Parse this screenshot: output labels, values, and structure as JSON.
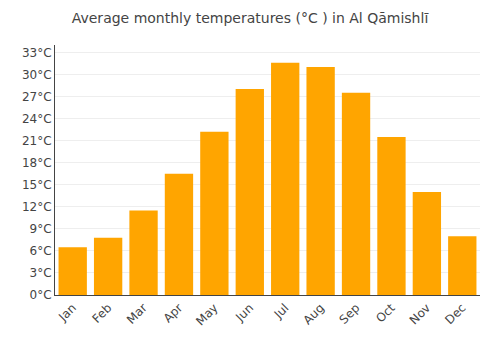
{
  "chart_data": {
    "type": "bar",
    "title": "Average monthly temperatures (°C ) in Al Qāmishlī",
    "categories": [
      "Jan",
      "Feb",
      "Mar",
      "Apr",
      "May",
      "Jun",
      "Jul",
      "Aug",
      "Sep",
      "Oct",
      "Nov",
      "Dec"
    ],
    "values": [
      6.5,
      7.8,
      11.5,
      16.5,
      22.2,
      28.0,
      31.6,
      31.0,
      27.5,
      21.5,
      14.0,
      8.0
    ],
    "color": "#FFA500",
    "ylim": [
      0,
      34
    ],
    "yticks": [
      {
        "value": 0,
        "label": "0°C"
      },
      {
        "value": 3,
        "label": "3°C"
      },
      {
        "value": 6,
        "label": "6°C"
      },
      {
        "value": 9,
        "label": "9°C"
      },
      {
        "value": 12,
        "label": "12°C"
      },
      {
        "value": 15,
        "label": "15°C"
      },
      {
        "value": 18,
        "label": "18°C"
      },
      {
        "value": 21,
        "label": "21°C"
      },
      {
        "value": 24,
        "label": "24°C"
      },
      {
        "value": 27,
        "label": "27°C"
      },
      {
        "value": 30,
        "label": "30°C"
      },
      {
        "value": 33,
        "label": "33°C"
      }
    ],
    "grid": true
  }
}
